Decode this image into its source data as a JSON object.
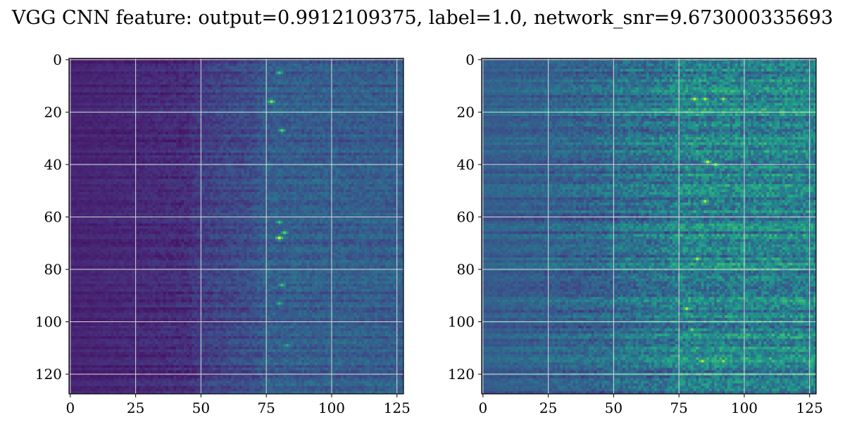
{
  "chart_data": {
    "type": "heatmap",
    "title": "VGG CNN feature: output=0.9912109375, label=1.0, network_snr=9.673000335693",
    "colormap": "viridis",
    "grid": true,
    "panels": [
      {
        "name": "",
        "xlim": [
          0,
          127
        ],
        "ylim": [
          127,
          0
        ],
        "xticks": [
          "0",
          "25",
          "50",
          "75",
          "100",
          "125"
        ],
        "yticks": [
          "0",
          "20",
          "40",
          "60",
          "80",
          "100",
          "120"
        ],
        "profile": {
          "x_breakpoints": [
            0,
            45,
            50,
            70,
            75,
            127
          ],
          "base_levels": [
            0.1,
            0.13,
            0.18,
            0.24,
            0.3,
            0.3
          ],
          "noise": 0.12,
          "hotspots": [
            {
              "x": 80,
              "y": 5,
              "v": 0.7
            },
            {
              "x": 77,
              "y": 16,
              "v": 0.85
            },
            {
              "x": 81,
              "y": 27,
              "v": 0.75
            },
            {
              "x": 80,
              "y": 62,
              "v": 0.7
            },
            {
              "x": 82,
              "y": 66,
              "v": 0.75
            },
            {
              "x": 80,
              "y": 68,
              "v": 0.95
            },
            {
              "x": 81,
              "y": 86,
              "v": 0.7
            },
            {
              "x": 80,
              "y": 93,
              "v": 0.65
            },
            {
              "x": 83,
              "y": 109,
              "v": 0.6
            }
          ]
        }
      },
      {
        "name": "",
        "xlim": [
          0,
          127
        ],
        "ylim": [
          127,
          0
        ],
        "xticks": [
          "0",
          "25",
          "50",
          "75",
          "100",
          "125"
        ],
        "yticks": [
          "0",
          "20",
          "40",
          "60",
          "80",
          "100",
          "120"
        ],
        "profile": {
          "x_breakpoints": [
            0,
            45,
            50,
            70,
            75,
            127
          ],
          "base_levels": [
            0.3,
            0.33,
            0.36,
            0.4,
            0.45,
            0.45
          ],
          "noise": 0.25,
          "hotspots": [
            {
              "x": 81,
              "y": 15,
              "v": 0.95
            },
            {
              "x": 85,
              "y": 15,
              "v": 0.9
            },
            {
              "x": 92,
              "y": 15,
              "v": 0.85
            },
            {
              "x": 86,
              "y": 39,
              "v": 0.95
            },
            {
              "x": 89,
              "y": 40,
              "v": 0.85
            },
            {
              "x": 85,
              "y": 54,
              "v": 0.9
            },
            {
              "x": 82,
              "y": 76,
              "v": 0.9
            },
            {
              "x": 78,
              "y": 95,
              "v": 0.9
            },
            {
              "x": 80,
              "y": 103,
              "v": 0.8
            },
            {
              "x": 84,
              "y": 115,
              "v": 0.9
            },
            {
              "x": 92,
              "y": 115,
              "v": 0.85
            }
          ]
        }
      }
    ]
  }
}
